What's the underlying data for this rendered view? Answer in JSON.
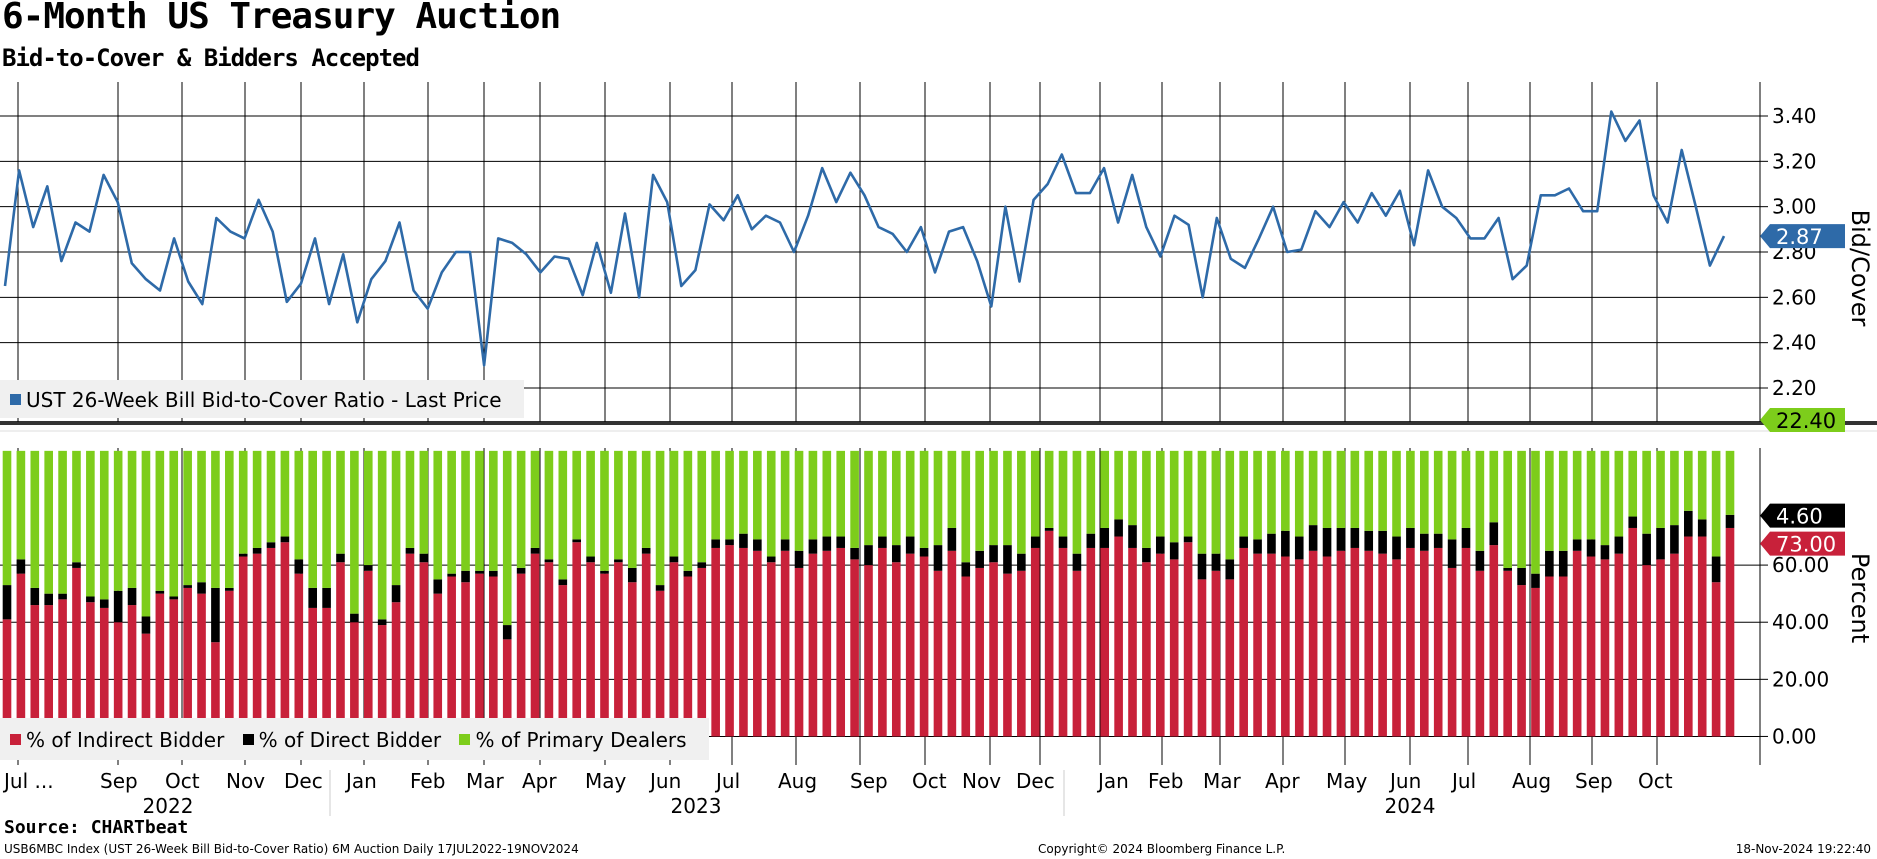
{
  "title": "6-Month US Treasury Auction",
  "subtitle": "Bid-to-Cover & Bidders Accepted",
  "source": "Source: CHARTbeat",
  "footer": {
    "left": "USB6MBC Index (UST 26-Week Bill Bid-to-Cover Ratio) 6M Auction  Daily 17JUL2022-19NOV2024",
    "center": "Copyright© 2024 Bloomberg Finance L.P.",
    "right": "18-Nov-2024 19:22:40"
  },
  "colors": {
    "line": "#2e6aa8",
    "indirect": "#c8213a",
    "direct": "#000000",
    "primary": "#7dcd1b",
    "grid": "#000000"
  },
  "x_axis": {
    "months": [
      "Jul ...",
      "Sep",
      "Oct",
      "Nov",
      "Dec",
      "Jan",
      "Feb",
      "Mar",
      "Apr",
      "May",
      "Jun",
      "Jul",
      "Aug",
      "Sep",
      "Oct",
      "Nov",
      "Dec",
      "Jan",
      "Feb",
      "Mar",
      "Apr",
      "May",
      "Jun",
      "Jul",
      "Aug",
      "Sep",
      "Oct"
    ],
    "years": [
      "2022",
      "2023",
      "2024"
    ]
  },
  "chart_data": [
    {
      "type": "line",
      "ylabel": "Bid/Cover",
      "ylim": [
        2.05,
        3.55
      ],
      "yticks": [
        "3.40",
        "3.20",
        "3.00",
        "2.80",
        "2.60",
        "2.40",
        "2.20"
      ],
      "ytick_values": [
        3.4,
        3.2,
        3.0,
        2.8,
        2.6,
        2.4,
        2.2
      ],
      "grid": true,
      "legend": "bottom-left",
      "last_value_label": "2.87",
      "series": [
        {
          "name": "UST 26-Week Bill Bid-to-Cover Ratio - Last Price",
          "values": [
            2.65,
            3.16,
            2.91,
            3.09,
            2.76,
            2.93,
            2.89,
            3.14,
            3.02,
            2.75,
            2.68,
            2.63,
            2.86,
            2.67,
            2.57,
            2.95,
            2.89,
            2.86,
            3.03,
            2.89,
            2.58,
            2.66,
            2.86,
            2.57,
            2.79,
            2.49,
            2.68,
            2.76,
            2.93,
            2.63,
            2.55,
            2.71,
            2.8,
            2.8,
            2.3,
            2.86,
            2.84,
            2.79,
            2.71,
            2.78,
            2.77,
            2.61,
            2.84,
            2.62,
            2.97,
            2.6,
            3.14,
            3.02,
            2.65,
            2.72,
            3.01,
            2.94,
            3.05,
            2.9,
            2.96,
            2.93,
            2.8,
            2.96,
            3.17,
            3.02,
            3.15,
            3.05,
            2.91,
            2.88,
            2.8,
            2.91,
            2.71,
            2.89,
            2.91,
            2.76,
            2.56,
            3.0,
            2.67,
            3.03,
            3.1,
            3.23,
            3.06,
            3.06,
            3.17,
            2.93,
            3.14,
            2.91,
            2.78,
            2.96,
            2.92,
            2.6,
            2.95,
            2.77,
            2.73,
            2.86,
            3.0,
            2.8,
            2.81,
            2.98,
            2.91,
            3.02,
            2.93,
            3.06,
            2.96,
            3.07,
            2.83,
            3.16,
            3.0,
            2.95,
            2.86,
            2.86,
            2.95,
            2.68,
            2.74,
            3.05,
            3.05,
            3.08,
            2.98,
            2.98,
            3.42,
            3.29,
            3.38,
            3.05,
            2.93,
            3.25,
            3.0,
            2.74,
            2.87
          ]
        }
      ]
    },
    {
      "type": "bar",
      "stacked": true,
      "ylabel": "Percent",
      "ylim": [
        -10,
        101
      ],
      "yticks": [
        "0.00",
        "20.00",
        "40.00",
        "60.00"
      ],
      "ytick_values": [
        0,
        20,
        40,
        60
      ],
      "grid": true,
      "legend": "bottom-left",
      "last_value_labels": [
        "22.40",
        "4.60",
        "73.00"
      ],
      "series": [
        {
          "name": "% of Indirect Bidder",
          "values": [
            41,
            57,
            46,
            46,
            48,
            59,
            47,
            45,
            40,
            46,
            36,
            50,
            48,
            52,
            50,
            33,
            51,
            63,
            64,
            66,
            68,
            57,
            45,
            45,
            61,
            40,
            58,
            39,
            47,
            64,
            61,
            50,
            56,
            54,
            57,
            56,
            34,
            57,
            64,
            61,
            53,
            68,
            61,
            57,
            61,
            54,
            64,
            51,
            61,
            56,
            59,
            66,
            67,
            66,
            65,
            61,
            65,
            59,
            64,
            65,
            66,
            62,
            60,
            66,
            61,
            64,
            63,
            58,
            65,
            56,
            59,
            61,
            57,
            58,
            66,
            72,
            66,
            58,
            66,
            66,
            70,
            66,
            61,
            64,
            62,
            68,
            55,
            58,
            55,
            66,
            64,
            64,
            63,
            62,
            65,
            63,
            65,
            66,
            65,
            64,
            62,
            66,
            65,
            66,
            59,
            66,
            58,
            67,
            58,
            53,
            52,
            56,
            56,
            65,
            63,
            62,
            64,
            73,
            60,
            62,
            64,
            70,
            70,
            54,
            73
          ]
        },
        {
          "name": "% of Direct Bidder",
          "values": [
            12,
            5,
            6,
            4,
            2,
            2,
            2,
            3,
            11,
            6,
            6,
            1,
            1,
            1,
            4,
            19,
            1,
            1,
            2,
            2,
            2,
            5,
            7,
            7,
            3,
            3,
            2,
            2,
            6,
            2,
            3,
            5,
            1,
            4,
            1,
            2,
            5,
            2,
            2,
            1,
            2,
            1,
            2,
            1,
            1,
            5,
            2,
            2,
            2,
            2,
            2,
            3,
            2,
            5,
            4,
            2,
            4,
            6,
            5,
            5,
            4,
            4,
            7,
            4,
            6,
            6,
            3,
            9,
            8,
            5,
            6,
            6,
            10,
            6,
            4,
            1,
            4,
            6,
            5,
            7,
            6,
            8,
            5,
            6,
            6,
            2,
            9,
            6,
            7,
            4,
            5,
            7,
            9,
            8,
            9,
            10,
            8,
            7,
            7,
            8,
            8,
            7,
            6,
            5,
            10,
            7,
            7,
            8,
            1,
            6,
            5,
            9,
            9,
            4,
            6,
            5,
            6,
            4,
            11,
            11,
            10,
            9,
            6,
            9,
            4.6
          ]
        },
        {
          "name": "% of Primary Dealers",
          "values": [
            47,
            38,
            48,
            50,
            50,
            39,
            51,
            52,
            49,
            48,
            58,
            49,
            51,
            47,
            46,
            48,
            48,
            36,
            34,
            32,
            30,
            38,
            48,
            48,
            36,
            57,
            40,
            59,
            47,
            34,
            36,
            45,
            43,
            42,
            42,
            42,
            61,
            41,
            34,
            38,
            45,
            31,
            37,
            42,
            38,
            41,
            34,
            47,
            37,
            42,
            39,
            31,
            31,
            29,
            31,
            37,
            31,
            35,
            31,
            30,
            30,
            34,
            33,
            30,
            33,
            30,
            34,
            33,
            27,
            39,
            35,
            33,
            33,
            36,
            30,
            27,
            30,
            36,
            29,
            27,
            24,
            26,
            34,
            30,
            32,
            30,
            36,
            36,
            38,
            30,
            31,
            29,
            28,
            30,
            26,
            27,
            27,
            27,
            28,
            28,
            30,
            27,
            29,
            29,
            31,
            27,
            35,
            25,
            41,
            41,
            43,
            35,
            35,
            31,
            31,
            33,
            30,
            23,
            29,
            27,
            26,
            21,
            24,
            37,
            22.4
          ]
        }
      ]
    }
  ]
}
